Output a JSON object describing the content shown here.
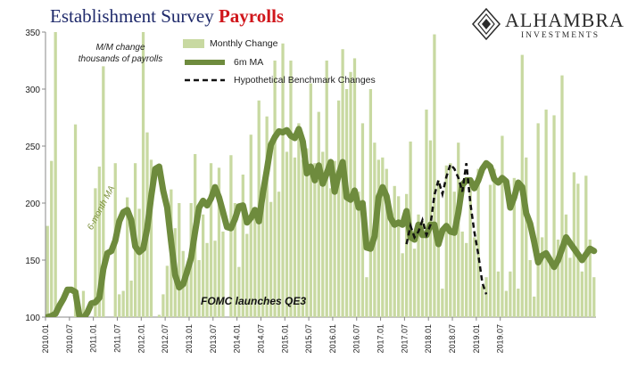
{
  "title": {
    "part1": "Establishment Survey",
    "part2": "Payrolls"
  },
  "logo": {
    "name": "ALHAMBRA",
    "sub": "INVESTMENTS"
  },
  "note": {
    "line1": "M/M change",
    "line2": "thousands of payrolls"
  },
  "legend": {
    "monthly": "Monthly Change",
    "ma": "6m MA",
    "bench": "Hypothetical Benchmark Changes"
  },
  "annotations": {
    "ma_label": "6-month MA",
    "qe3": "FOMC launches QE3"
  },
  "colors": {
    "bars": "#c8d9a1",
    "ma": "#6e8b3d",
    "bench": "#111111",
    "title_blue": "#1f2a6b",
    "title_red": "#d0161b"
  },
  "chart_data": {
    "type": "bar",
    "ylim": [
      100,
      350
    ],
    "yticks": [
      100,
      150,
      200,
      250,
      300,
      350
    ],
    "xticks": [
      "2010.01",
      "2010.07",
      "2011.01",
      "2011.07",
      "2012.01",
      "2012.07",
      "2013.01",
      "2013.07",
      "2014.01",
      "2014.07",
      "2015.01",
      "2015.07",
      "2016.01",
      "2016.07",
      "2017.01",
      "2017.07",
      "2018.01",
      "2018.07",
      "2019.01",
      "2019.07"
    ],
    "start": "2010.01",
    "monthly_change": [
      180,
      237,
      350,
      40,
      90,
      20,
      70,
      269,
      50,
      123,
      100,
      40,
      213,
      232,
      320,
      95,
      95,
      235,
      120,
      123,
      205,
      132,
      235,
      195,
      350,
      262,
      238,
      90,
      102,
      120,
      145,
      212,
      178,
      200,
      158,
      140,
      200,
      243,
      150,
      190,
      165,
      235,
      167,
      231,
      175,
      80,
      242,
      200,
      144,
      225,
      173,
      260,
      190,
      290,
      214,
      276,
      201,
      325,
      210,
      340,
      245,
      325,
      240,
      270,
      238,
      248,
      305,
      235,
      280,
      245,
      325,
      213,
      237,
      290,
      335,
      300,
      315,
      327,
      210,
      270,
      135,
      300,
      253,
      238,
      240,
      230,
      190,
      215,
      206,
      156,
      208,
      254,
      160,
      190,
      184,
      282,
      255,
      348,
      220,
      125,
      233,
      235,
      210,
      253,
      175,
      165,
      220,
      170,
      230,
      127,
      135,
      216,
      230,
      140,
      259,
      123,
      140,
      222,
      125,
      330,
      240,
      150,
      118,
      270,
      170,
      282,
      150,
      277,
      168,
      312,
      190,
      152,
      227,
      217,
      140,
      224,
      168,
      135
    ],
    "ma_6m": [
      100,
      101,
      103,
      110,
      116,
      124,
      124,
      122,
      101,
      99,
      104,
      112,
      113,
      117,
      142,
      156,
      158,
      167,
      184,
      192,
      194,
      185,
      162,
      157,
      160,
      178,
      206,
      230,
      232,
      211,
      196,
      166,
      137,
      126,
      129,
      140,
      152,
      175,
      196,
      202,
      198,
      204,
      214,
      205,
      192,
      179,
      178,
      186,
      197,
      198,
      183,
      187,
      194,
      184,
      209,
      229,
      251,
      258,
      263,
      262,
      264,
      259,
      257,
      265,
      254,
      226,
      232,
      220,
      233,
      217,
      226,
      236,
      210,
      225,
      236,
      205,
      203,
      211,
      196,
      200,
      161,
      160,
      171,
      205,
      214,
      206,
      187,
      181,
      183,
      181,
      193,
      170,
      168,
      181,
      172,
      172,
      181,
      181,
      164,
      176,
      180,
      175,
      174,
      192,
      216,
      220,
      220,
      213,
      220,
      230,
      235,
      232,
      221,
      218,
      222,
      219,
      196,
      205,
      218,
      214,
      191,
      182,
      166,
      148,
      154,
      156,
      150,
      144,
      150,
      160,
      170,
      165,
      160,
      155,
      150,
      155,
      160,
      158
    ],
    "ma_start_offset": 0,
    "benchmark": [
      {
        "x": "2017.07",
        "y": 164
      },
      {
        "x": "2017.08",
        "y": 180
      },
      {
        "x": "2017.09",
        "y": 170
      },
      {
        "x": "2017.10",
        "y": 175
      },
      {
        "x": "2017.11",
        "y": 185
      },
      {
        "x": "2017.12",
        "y": 172
      },
      {
        "x": "2018.01",
        "y": 181
      },
      {
        "x": "2018.02",
        "y": 207
      },
      {
        "x": "2018.03",
        "y": 220
      },
      {
        "x": "2018.04",
        "y": 208
      },
      {
        "x": "2018.05",
        "y": 223
      },
      {
        "x": "2018.06",
        "y": 234
      },
      {
        "x": "2018.07",
        "y": 230
      },
      {
        "x": "2018.08",
        "y": 222
      },
      {
        "x": "2018.09",
        "y": 210
      },
      {
        "x": "2018.10",
        "y": 235
      },
      {
        "x": "2018.11",
        "y": 200
      },
      {
        "x": "2018.12",
        "y": 175
      },
      {
        "x": "2019.01",
        "y": 155
      },
      {
        "x": "2019.02",
        "y": 130
      },
      {
        "x": "2019.03",
        "y": 120
      }
    ]
  }
}
